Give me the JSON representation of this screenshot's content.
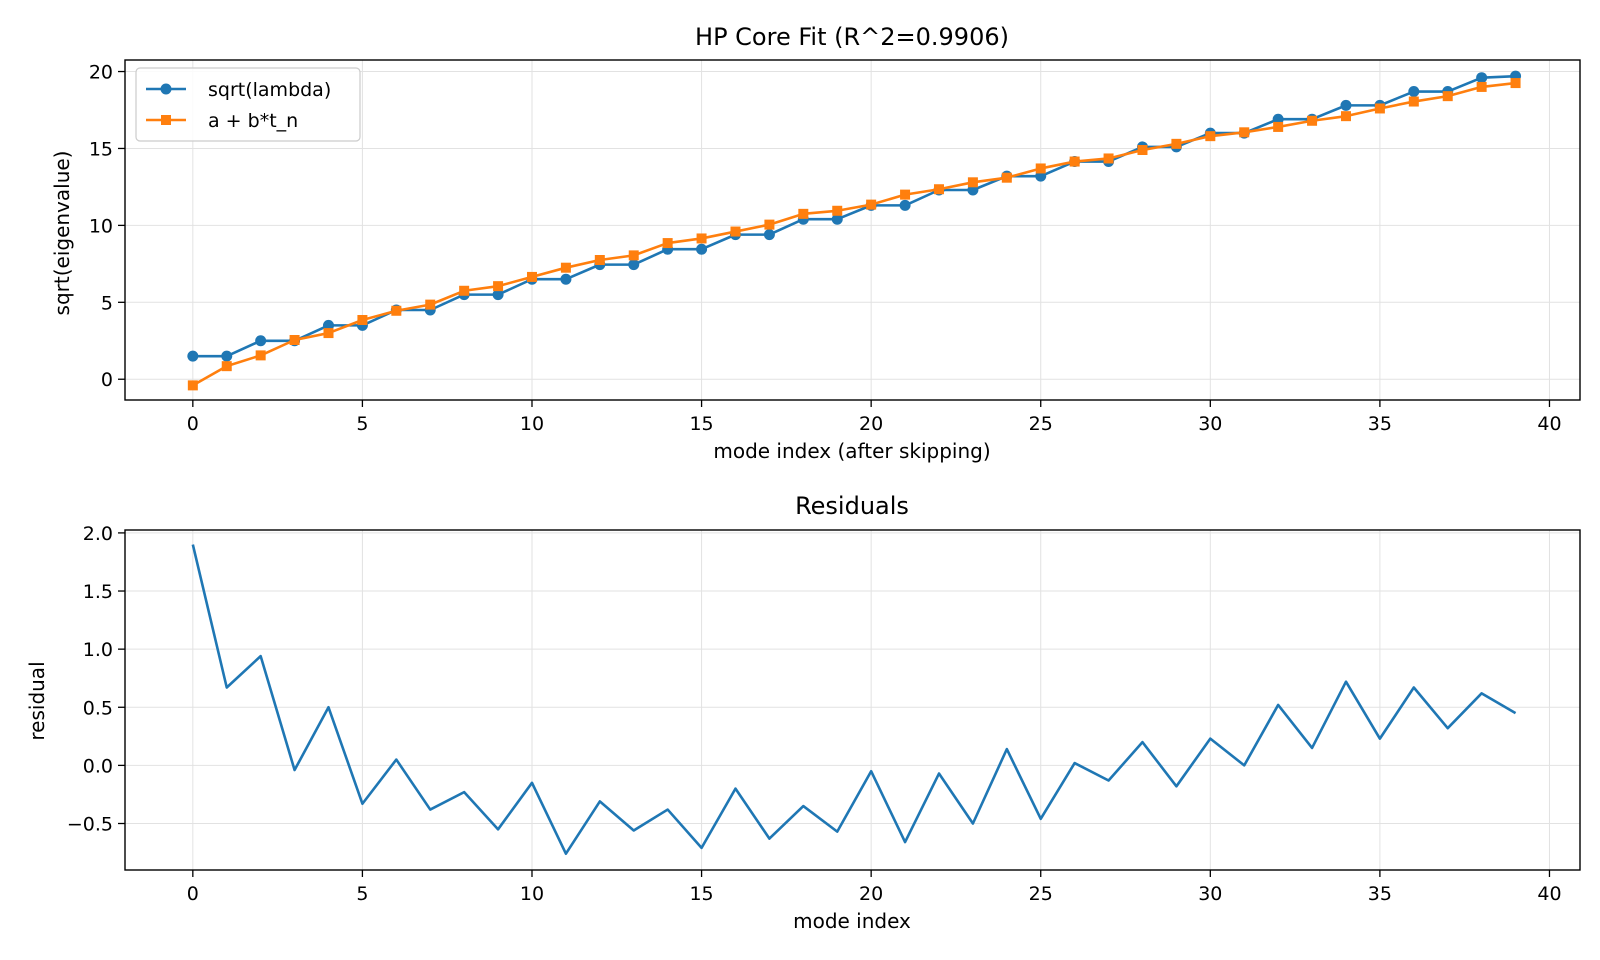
{
  "chart_data": [
    {
      "type": "line",
      "title": "HP Core Fit (R^2=0.9906)",
      "xlabel": "mode index (after skipping)",
      "ylabel": "sqrt(eigenvalue)",
      "xlim": [
        -2,
        40.9
      ],
      "ylim": [
        -1.35,
        20.75
      ],
      "xticks": [
        0,
        5,
        10,
        15,
        20,
        25,
        30,
        35,
        40
      ],
      "yticks": [
        0,
        5,
        10,
        15,
        20
      ],
      "grid": true,
      "legend": "top-left",
      "x": [
        0,
        1,
        2,
        3,
        4,
        5,
        6,
        7,
        8,
        9,
        10,
        11,
        12,
        13,
        14,
        15,
        16,
        17,
        18,
        19,
        20,
        21,
        22,
        23,
        24,
        25,
        26,
        27,
        28,
        29,
        30,
        31,
        32,
        33,
        34,
        35,
        36,
        37,
        38,
        39
      ],
      "series": [
        {
          "name": "sqrt(lambda)",
          "color": "#1f77b4",
          "marker": "circle",
          "values": [
            1.5,
            1.5,
            2.5,
            2.5,
            3.5,
            3.5,
            4.5,
            4.5,
            5.5,
            5.5,
            6.5,
            6.5,
            7.45,
            7.45,
            8.45,
            8.45,
            9.4,
            9.4,
            10.4,
            10.4,
            11.3,
            11.3,
            12.3,
            12.3,
            13.2,
            13.2,
            14.15,
            14.15,
            15.1,
            15.1,
            16.0,
            16.0,
            16.9,
            16.9,
            17.8,
            17.8,
            18.7,
            18.7,
            19.6,
            19.7
          ]
        },
        {
          "name": "a + b*t_n",
          "color": "#ff7f0e",
          "marker": "square",
          "values": [
            -0.4,
            0.85,
            1.55,
            2.55,
            3.0,
            3.85,
            4.45,
            4.85,
            5.75,
            6.05,
            6.65,
            7.25,
            7.75,
            8.05,
            8.85,
            9.15,
            9.6,
            10.05,
            10.75,
            10.95,
            11.35,
            12.0,
            12.35,
            12.8,
            13.1,
            13.7,
            14.15,
            14.35,
            14.9,
            15.3,
            15.8,
            16.05,
            16.4,
            16.8,
            17.1,
            17.6,
            18.05,
            18.4,
            19.0,
            19.25
          ]
        }
      ]
    },
    {
      "type": "line",
      "title": "Residuals",
      "xlabel": "mode index",
      "ylabel": "residual",
      "xlim": [
        -2,
        40.9
      ],
      "ylim": [
        -0.9,
        2.025
      ],
      "xticks": [
        0,
        5,
        10,
        15,
        20,
        25,
        30,
        35,
        40
      ],
      "yticks": [
        -0.5,
        0.0,
        0.5,
        1.0,
        1.5,
        2.0
      ],
      "ytick_labels": [
        "−0.5",
        "0.0",
        "0.5",
        "1.0",
        "1.5",
        "2.0"
      ],
      "grid": true,
      "x": [
        0,
        1,
        2,
        3,
        4,
        5,
        6,
        7,
        8,
        9,
        10,
        11,
        12,
        13,
        14,
        15,
        16,
        17,
        18,
        19,
        20,
        21,
        22,
        23,
        24,
        25,
        26,
        27,
        28,
        29,
        30,
        31,
        32,
        33,
        34,
        35,
        36,
        37,
        38,
        39
      ],
      "series": [
        {
          "color": "#1f77b4",
          "values": [
            1.9,
            0.67,
            0.94,
            -0.04,
            0.5,
            -0.33,
            0.05,
            -0.38,
            -0.23,
            -0.55,
            -0.15,
            -0.76,
            -0.31,
            -0.56,
            -0.38,
            -0.71,
            -0.2,
            -0.63,
            -0.35,
            -0.57,
            -0.05,
            -0.66,
            -0.07,
            -0.5,
            0.14,
            -0.46,
            0.02,
            -0.13,
            0.2,
            -0.18,
            0.23,
            0.0,
            0.52,
            0.15,
            0.72,
            0.23,
            0.67,
            0.32,
            0.62,
            0.45
          ]
        }
      ]
    }
  ]
}
